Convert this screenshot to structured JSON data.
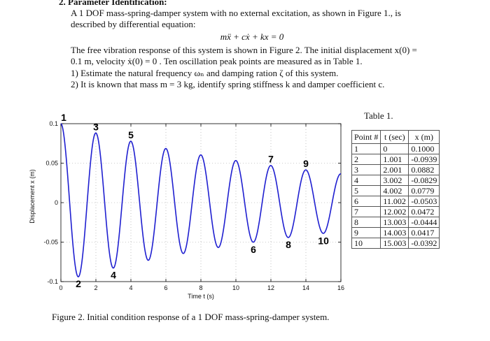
{
  "problem": {
    "heading": "2.  Parameter Identification:",
    "intro_line1": "A 1 DOF mass-spring-damper system with no external excitation, as shown in Figure 1., is",
    "intro_line2": "described by differential equation:",
    "equation": "mẍ + cẋ + kx = 0",
    "response_line1": "The free vibration response of this system is shown in Figure 2. The initial displacement x(0) =",
    "response_line2": "0.1 m, velocity ẋ(0) = 0 . Ten oscillation peak points are measured as in Table 1.",
    "task1": "1)  Estimate the natural frequency ωₙ and damping ration ζ of this system.",
    "task2": "2)  It is known that mass m = 3 kg, identify spring stiffness k and damper coefficient c."
  },
  "table": {
    "caption": "Table 1.",
    "headers": [
      "Point #",
      "t (sec)",
      "x (m)"
    ],
    "rows": [
      [
        "1",
        "0",
        "0.1000"
      ],
      [
        "2",
        "1.001",
        "-0.0939"
      ],
      [
        "3",
        "2.001",
        "0.0882"
      ],
      [
        "4",
        "3.002",
        "-0.0829"
      ],
      [
        "5",
        "4.002",
        "0.0779"
      ],
      [
        "6",
        "11.002",
        "-0.0503"
      ],
      [
        "7",
        "12.002",
        "0.0472"
      ],
      [
        "8",
        "13.003",
        "-0.0444"
      ],
      [
        "9",
        "14.003",
        "0.0417"
      ],
      [
        "10",
        "15.003",
        "-0.0392"
      ]
    ]
  },
  "figure_caption": "Figure 2. Initial condition response of a 1 DOF mass-spring-damper system.",
  "chart_data": {
    "type": "line",
    "xlabel": "Time t (s)",
    "ylabel": "Displacement x (m)",
    "xlim": [
      0,
      16
    ],
    "ylim": [
      -0.1,
      0.1
    ],
    "x_ticks": [
      0,
      2,
      4,
      6,
      8,
      10,
      12,
      14,
      16
    ],
    "y_ticks": [
      -0.1,
      -0.05,
      0,
      0.05,
      0.1
    ],
    "y_tick_labels": [
      "-0.1",
      "-0.05",
      "0",
      "0.05",
      "0.1"
    ],
    "grid": true,
    "line_color": "#1f1fd0",
    "signal": {
      "amplitude": 0.1,
      "period": 2.0,
      "decay_per_half_cycle": 0.939
    },
    "peaks": [
      {
        "label": "1",
        "t": 0,
        "x": 0.1
      },
      {
        "label": "2",
        "t": 1.001,
        "x": -0.0939
      },
      {
        "label": "3",
        "t": 2.001,
        "x": 0.0882
      },
      {
        "label": "4",
        "t": 3.002,
        "x": -0.0829
      },
      {
        "label": "5",
        "t": 4.002,
        "x": 0.0779
      },
      {
        "label": "6",
        "t": 11.002,
        "x": -0.0503
      },
      {
        "label": "7",
        "t": 12.002,
        "x": 0.0472
      },
      {
        "label": "8",
        "t": 13.003,
        "x": -0.0444
      },
      {
        "label": "9",
        "t": 14.003,
        "x": 0.0417
      },
      {
        "label": "10",
        "t": 15.003,
        "x": -0.0392
      }
    ]
  }
}
